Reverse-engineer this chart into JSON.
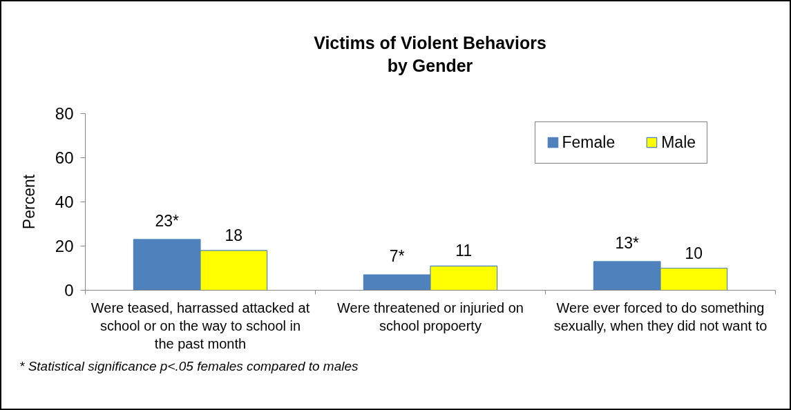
{
  "chart_data": {
    "type": "bar",
    "title": "Victims of Violent Behaviors by Gender",
    "ylabel": "Percent",
    "categories": [
      "Were teased, harrassed attacked at school or on the way to school in the past month",
      "Were threatened or injuried on school propoerty",
      "Were ever forced to do something sexually, when they did not want to"
    ],
    "series": [
      {
        "name": "Female",
        "color": "#4f81bd",
        "values": [
          23,
          7,
          13
        ],
        "value_labels": [
          "23*",
          "7*",
          "13*"
        ]
      },
      {
        "name": "Male",
        "color": "#ffff00",
        "values": [
          18,
          11,
          10
        ],
        "value_labels": [
          "18",
          "11",
          "10"
        ]
      }
    ],
    "ylim": [
      0,
      80
    ],
    "yticks": [
      0,
      20,
      40,
      60,
      80
    ],
    "legend": "top right",
    "annotations": [
      "* Statistical significance p<.05 females compared to males"
    ]
  }
}
